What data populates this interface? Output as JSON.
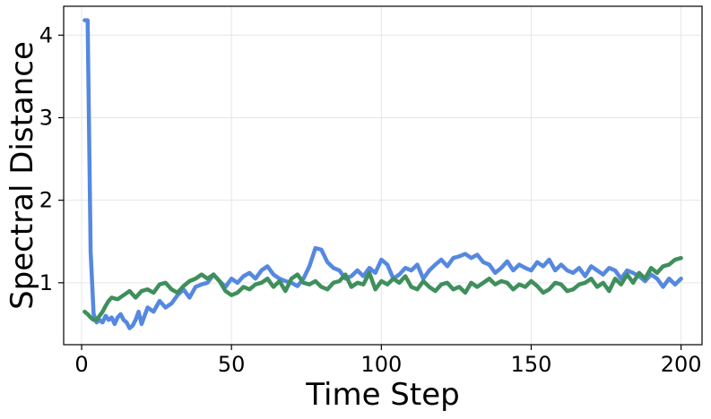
{
  "chart_data": {
    "type": "line",
    "title": "",
    "xlabel": "Time Step",
    "ylabel": "Spectral Distance",
    "xlim": [
      -6,
      207
    ],
    "ylim": [
      0.25,
      4.35
    ],
    "xticks": [
      0,
      50,
      100,
      150,
      200
    ],
    "yticks": [
      1,
      2,
      3,
      4
    ],
    "grid": true,
    "legend": "none",
    "series": [
      {
        "color": "#5588e0",
        "x": [
          1,
          2,
          3,
          4,
          5,
          6,
          7,
          8,
          9,
          10,
          11,
          12,
          13,
          14,
          15,
          16,
          17,
          18,
          19,
          20,
          22,
          24,
          26,
          28,
          30,
          32,
          34,
          36,
          38,
          40,
          42,
          44,
          46,
          48,
          50,
          52,
          54,
          56,
          58,
          60,
          62,
          64,
          66,
          68,
          70,
          72,
          74,
          76,
          78,
          80,
          82,
          84,
          86,
          88,
          90,
          92,
          94,
          96,
          98,
          100,
          102,
          104,
          106,
          108,
          110,
          112,
          114,
          116,
          118,
          120,
          122,
          124,
          126,
          128,
          130,
          132,
          134,
          136,
          138,
          140,
          142,
          144,
          146,
          148,
          150,
          152,
          154,
          156,
          158,
          160,
          162,
          164,
          166,
          168,
          170,
          172,
          174,
          176,
          178,
          180,
          182,
          184,
          186,
          188,
          190,
          192,
          194,
          196,
          198,
          200
        ],
        "y": [
          4.18,
          4.18,
          1.38,
          0.62,
          0.52,
          0.55,
          0.52,
          0.6,
          0.55,
          0.58,
          0.5,
          0.58,
          0.62,
          0.55,
          0.52,
          0.45,
          0.48,
          0.55,
          0.65,
          0.5,
          0.7,
          0.65,
          0.78,
          0.7,
          0.75,
          0.85,
          0.92,
          0.82,
          0.95,
          0.98,
          1.0,
          1.1,
          1.02,
          0.95,
          1.05,
          1.0,
          1.08,
          1.12,
          1.05,
          1.15,
          1.2,
          1.1,
          1.05,
          1.02,
          1.0,
          0.96,
          1.05,
          1.2,
          1.42,
          1.4,
          1.25,
          1.18,
          1.15,
          1.05,
          1.08,
          1.15,
          1.08,
          1.18,
          1.12,
          1.28,
          1.22,
          1.05,
          1.1,
          1.18,
          1.15,
          1.22,
          1.05,
          1.15,
          1.22,
          1.28,
          1.2,
          1.3,
          1.32,
          1.35,
          1.3,
          1.34,
          1.25,
          1.22,
          1.12,
          1.18,
          1.26,
          1.15,
          1.22,
          1.18,
          1.15,
          1.25,
          1.2,
          1.28,
          1.15,
          1.22,
          1.15,
          1.12,
          1.18,
          1.08,
          1.2,
          1.15,
          1.1,
          1.18,
          1.15,
          1.05,
          1.15,
          1.12,
          1.08,
          1.02,
          1.1,
          1.05,
          0.95,
          1.05,
          0.98,
          1.05
        ]
      },
      {
        "color": "#3f8f5c",
        "x": [
          1,
          2,
          3,
          4,
          5,
          6,
          7,
          8,
          9,
          10,
          12,
          14,
          16,
          18,
          20,
          22,
          24,
          26,
          28,
          30,
          32,
          34,
          36,
          38,
          40,
          42,
          44,
          46,
          48,
          50,
          52,
          54,
          56,
          58,
          60,
          62,
          64,
          66,
          68,
          70,
          72,
          74,
          76,
          78,
          80,
          82,
          84,
          86,
          88,
          90,
          92,
          94,
          96,
          98,
          100,
          102,
          104,
          106,
          108,
          110,
          112,
          114,
          116,
          118,
          120,
          122,
          124,
          126,
          128,
          130,
          132,
          134,
          136,
          138,
          140,
          142,
          144,
          146,
          148,
          150,
          152,
          154,
          156,
          158,
          160,
          162,
          164,
          166,
          168,
          170,
          172,
          174,
          176,
          178,
          180,
          182,
          184,
          186,
          188,
          190,
          192,
          194,
          196,
          198,
          200
        ],
        "y": [
          0.65,
          0.62,
          0.58,
          0.55,
          0.55,
          0.6,
          0.65,
          0.72,
          0.78,
          0.82,
          0.8,
          0.85,
          0.9,
          0.82,
          0.9,
          0.92,
          0.88,
          0.98,
          1.0,
          0.92,
          0.88,
          0.96,
          1.02,
          1.05,
          1.1,
          1.05,
          1.1,
          1.02,
          0.9,
          0.85,
          0.88,
          0.95,
          0.92,
          0.98,
          1.0,
          1.05,
          0.95,
          1.02,
          0.9,
          1.05,
          1.1,
          1.0,
          0.98,
          1.02,
          0.95,
          0.92,
          1.0,
          1.02,
          1.1,
          0.95,
          1.0,
          0.98,
          1.12,
          0.92,
          1.02,
          0.98,
          1.05,
          1.0,
          1.08,
          0.95,
          0.92,
          1.02,
          0.95,
          0.9,
          0.98,
          1.0,
          0.92,
          0.95,
          0.88,
          1.0,
          0.95,
          1.0,
          1.05,
          0.98,
          1.02,
          1.0,
          0.92,
          0.98,
          0.95,
          1.02,
          0.96,
          0.88,
          0.92,
          1.0,
          0.98,
          0.9,
          0.92,
          0.98,
          1.0,
          1.05,
          0.95,
          1.0,
          0.9,
          1.05,
          0.98,
          1.1,
          1.0,
          1.12,
          1.05,
          1.18,
          1.12,
          1.2,
          1.22,
          1.28,
          1.3
        ]
      }
    ]
  }
}
